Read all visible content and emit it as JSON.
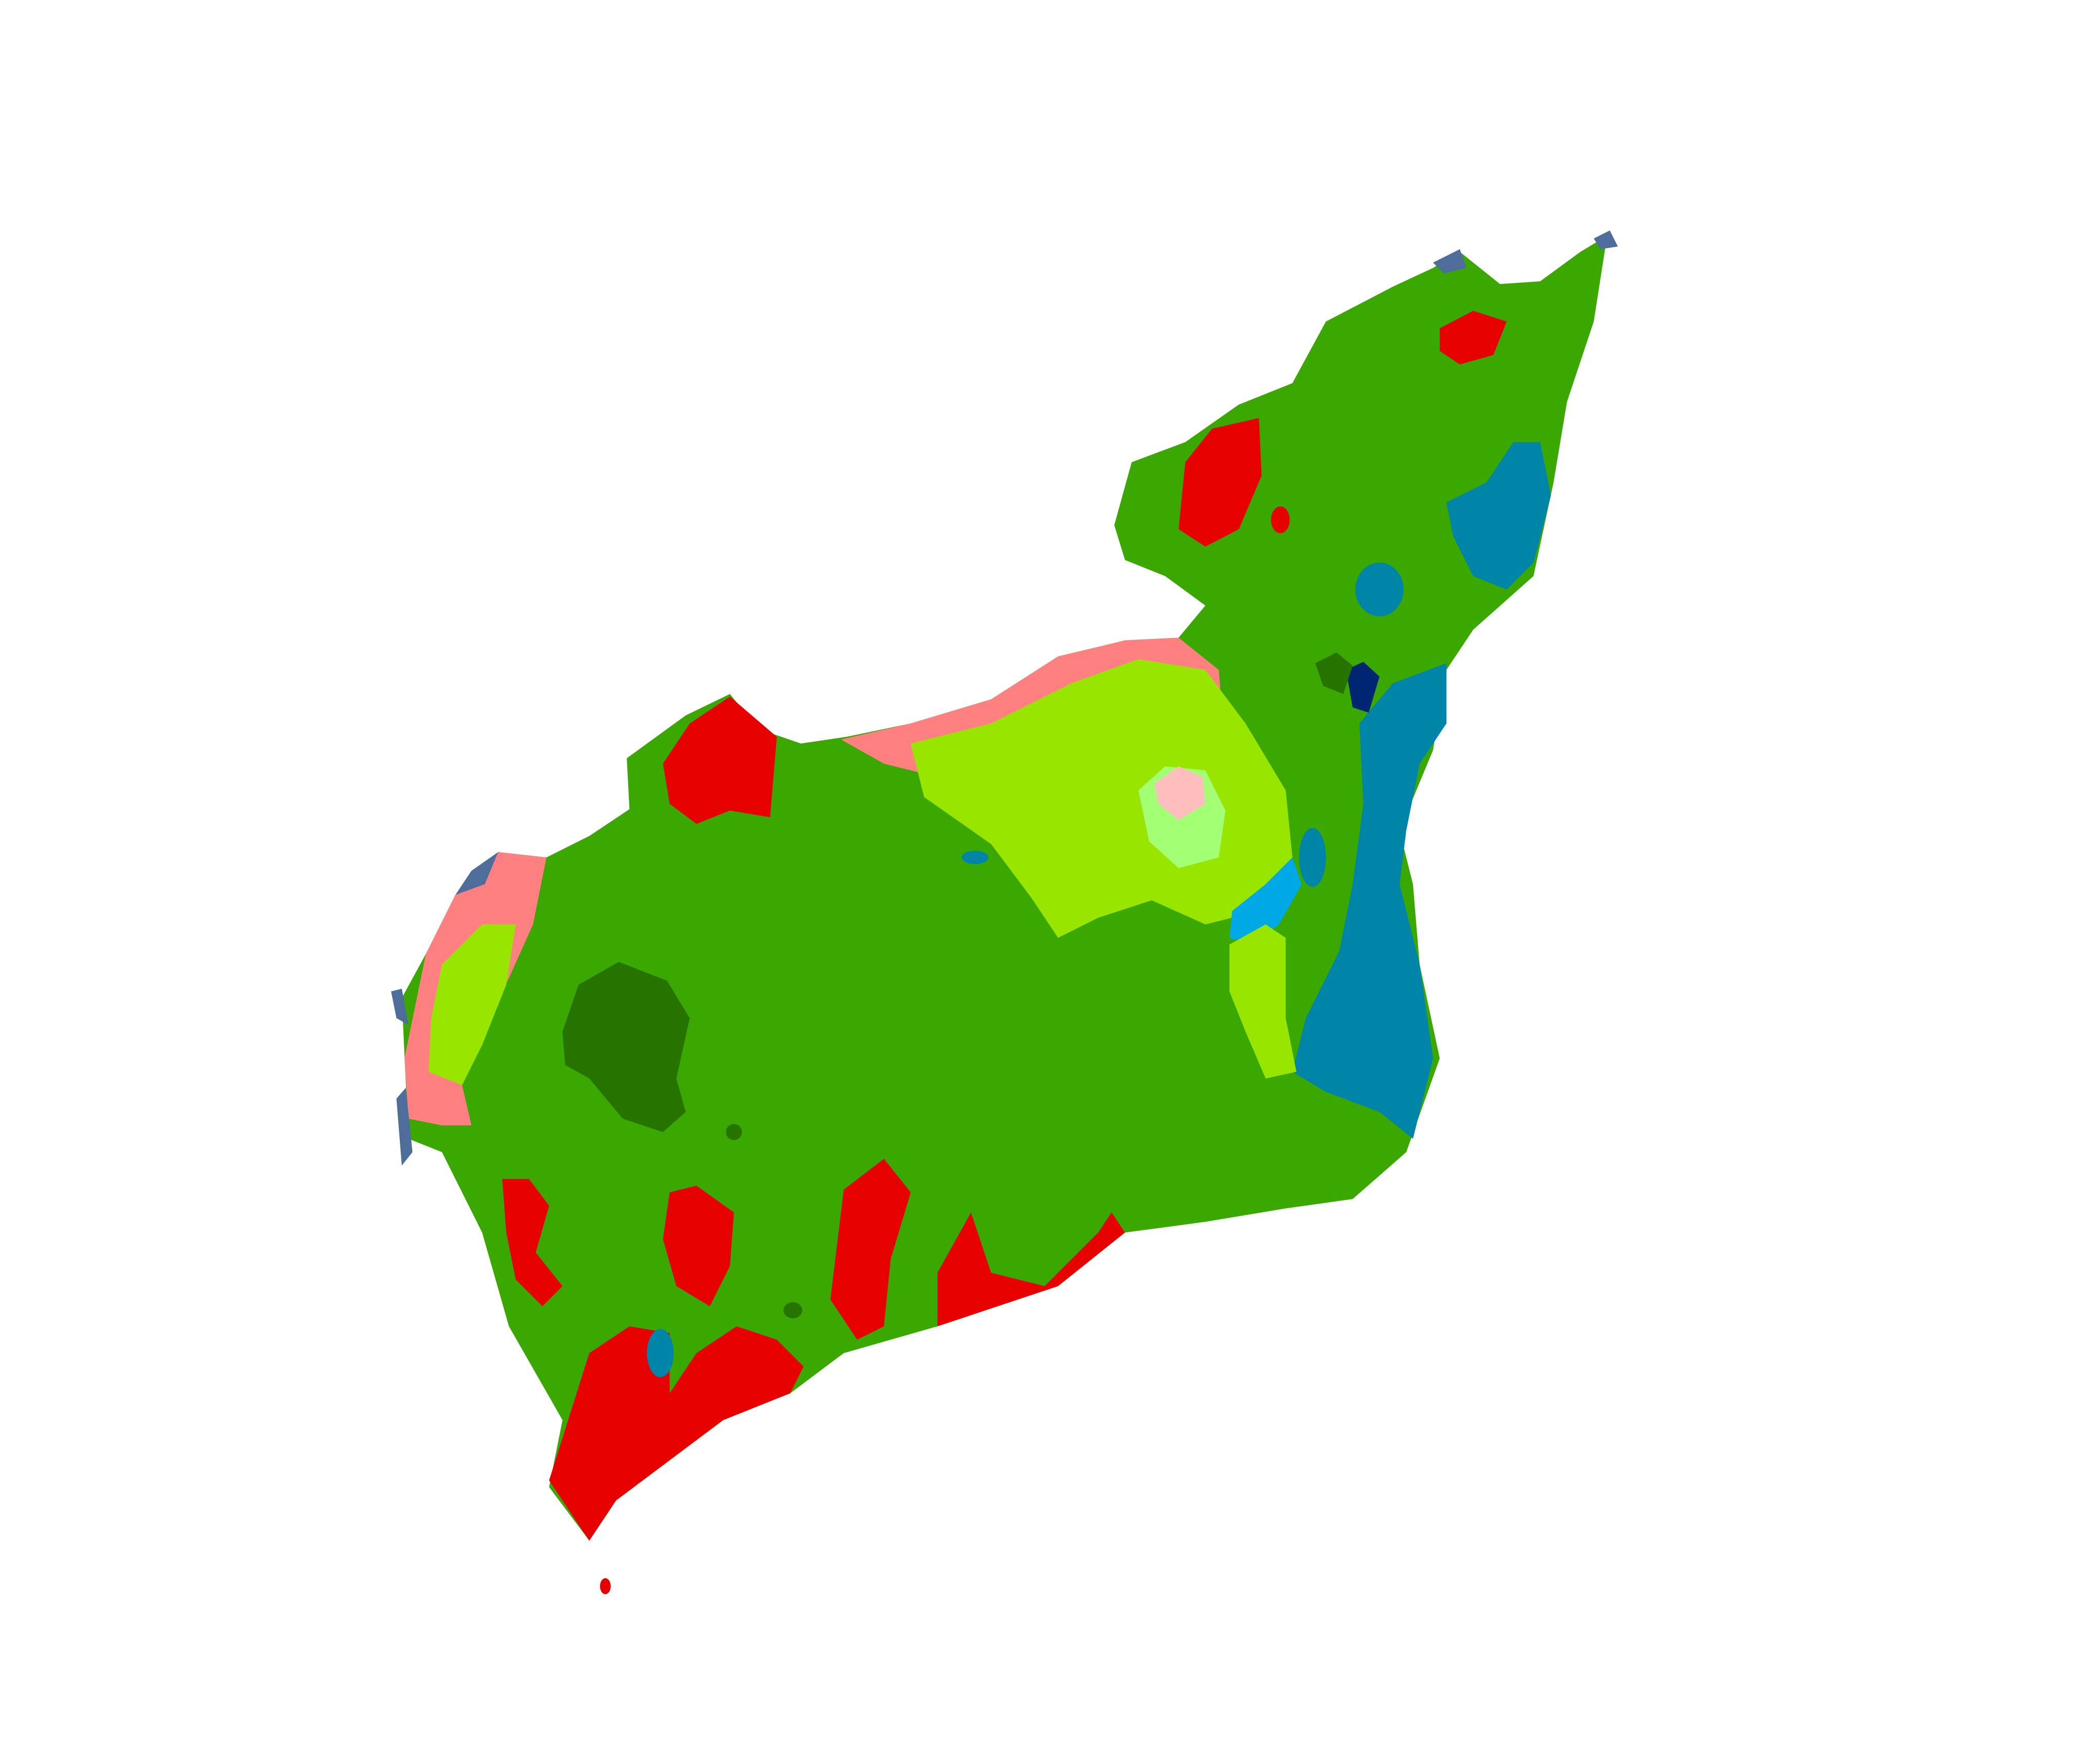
{
  "map": {
    "colors": {
      "background": "#ffffff",
      "zone_main": "#3aa800",
      "zone_dark": "#267300",
      "zone_light": "#98e600",
      "zone_pale": "#a3ff73",
      "zone_red": "#e60000",
      "zone_pink": "#ff8080",
      "zone_pale_pink": "#ffbebe",
      "zone_teal": "#0084a8",
      "zone_cyan": "#00a9e6",
      "zone_navy": "#002673",
      "zone_slate": "#4e6d9a"
    },
    "zones": [
      {
        "name": "main-land",
        "color_key": "zone_main"
      },
      {
        "name": "west-coast-pink",
        "color_key": "zone_pink"
      },
      {
        "name": "west-coast-light",
        "color_key": "zone_light"
      },
      {
        "name": "north-central-pink",
        "color_key": "zone_pink"
      },
      {
        "name": "north-central-light",
        "color_key": "zone_light"
      },
      {
        "name": "central-pale-green",
        "color_key": "zone_pale"
      },
      {
        "name": "central-pale-pink",
        "color_key": "zone_pale_pink"
      },
      {
        "name": "northwest-dark-green",
        "color_key": "zone_dark"
      },
      {
        "name": "east-teal",
        "color_key": "zone_teal"
      },
      {
        "name": "northeast-teal",
        "color_key": "zone_teal"
      },
      {
        "name": "east-cyan",
        "color_key": "zone_cyan"
      },
      {
        "name": "east-light-strip",
        "color_key": "zone_light"
      },
      {
        "name": "northeast-navy",
        "color_key": "zone_navy"
      },
      {
        "name": "northeast-dark-green",
        "color_key": "zone_dark"
      },
      {
        "name": "north-coast-red",
        "color_key": "zone_red"
      },
      {
        "name": "northeast-red",
        "color_key": "zone_red"
      },
      {
        "name": "south-coast-red",
        "color_key": "zone_red"
      },
      {
        "name": "southwest-red",
        "color_key": "zone_red"
      },
      {
        "name": "west-red",
        "color_key": "zone_red"
      },
      {
        "name": "coast-edge-slate",
        "color_key": "zone_slate"
      }
    ]
  }
}
